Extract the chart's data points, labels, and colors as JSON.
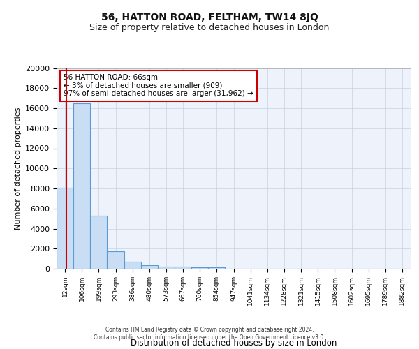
{
  "title1": "56, HATTON ROAD, FELTHAM, TW14 8JQ",
  "title2": "Size of property relative to detached houses in London",
  "xlabel": "Distribution of detached houses by size in London",
  "ylabel": "Number of detached properties",
  "bin_labels": [
    "12sqm",
    "106sqm",
    "199sqm",
    "293sqm",
    "386sqm",
    "480sqm",
    "573sqm",
    "667sqm",
    "760sqm",
    "854sqm",
    "947sqm",
    "1041sqm",
    "1134sqm",
    "1228sqm",
    "1321sqm",
    "1415sqm",
    "1508sqm",
    "1602sqm",
    "1695sqm",
    "1789sqm",
    "1882sqm"
  ],
  "bar_heights": [
    8100,
    16500,
    5300,
    1750,
    700,
    320,
    220,
    180,
    150,
    120,
    0,
    0,
    0,
    0,
    0,
    0,
    0,
    0,
    0,
    0,
    0
  ],
  "bar_color": "#c9ddf5",
  "bar_edge_color": "#5b9bd5",
  "bg_color": "#edf2fb",
  "grid_color": "#c8d0e0",
  "vline_color": "#cc0000",
  "vline_pos": 0.574,
  "annotation_text": "56 HATTON ROAD: 66sqm\n← 3% of detached houses are smaller (909)\n97% of semi-detached houses are larger (31,962) →",
  "annotation_box_edge": "#cc0000",
  "ylim": [
    0,
    20000
  ],
  "yticks": [
    0,
    2000,
    4000,
    6000,
    8000,
    10000,
    12000,
    14000,
    16000,
    18000,
    20000
  ],
  "footer1": "Contains HM Land Registry data © Crown copyright and database right 2024.",
  "footer2": "Contains public sector information licensed under the Open Government Licence v3.0."
}
